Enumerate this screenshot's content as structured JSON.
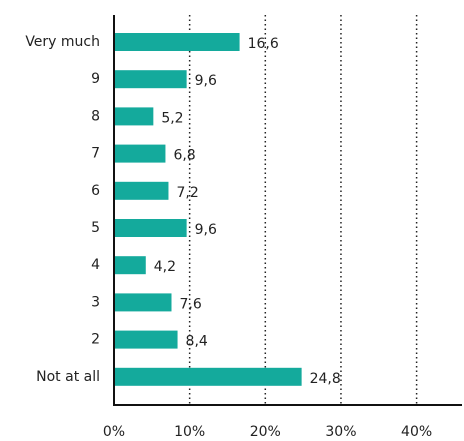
{
  "chart_data": {
    "type": "bar",
    "orientation": "horizontal",
    "categories": [
      "Very much",
      "9",
      "8",
      "7",
      "6",
      "5",
      "4",
      "3",
      "2",
      "Not at all"
    ],
    "values": [
      16.6,
      9.6,
      5.2,
      6.8,
      7.2,
      9.6,
      4.2,
      7.6,
      8.4,
      24.8
    ],
    "value_labels": [
      "16,6",
      "9,6",
      "5,2",
      "6,8",
      "7,2",
      "9,6",
      "4,2",
      "7,6",
      "8,4",
      "24,8"
    ],
    "color": "#14aa9c",
    "xlim": [
      0,
      46
    ],
    "xticks": [
      {
        "value": 0,
        "label": "0%"
      },
      {
        "value": 10,
        "label": "10%"
      },
      {
        "value": 20,
        "label": "20%"
      },
      {
        "value": 30,
        "label": "30%"
      },
      {
        "value": 40,
        "label": "40%"
      }
    ],
    "grid": true
  }
}
